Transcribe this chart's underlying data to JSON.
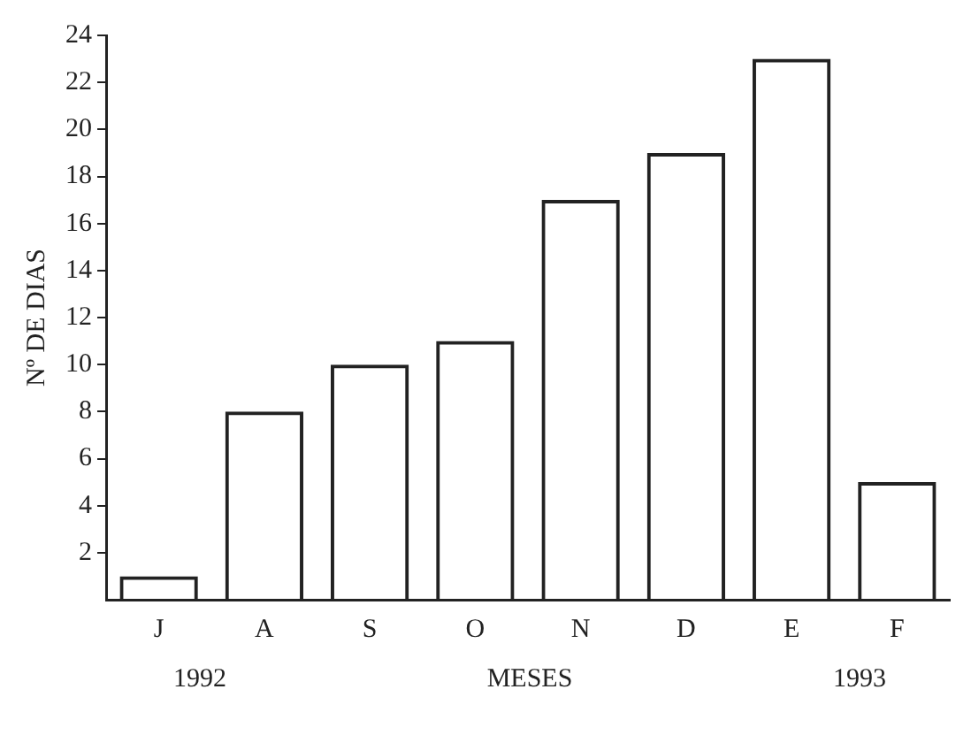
{
  "chart_data": {
    "type": "bar",
    "categories": [
      "J",
      "A",
      "S",
      "O",
      "N",
      "D",
      "E",
      "F"
    ],
    "values": [
      1,
      8,
      10,
      11,
      17,
      19,
      23,
      5
    ],
    "color": "#222222",
    "xlabel": "MESES",
    "ylabel": "Nº DE DIAS",
    "ylim": [
      0,
      24
    ],
    "yticks": [
      2,
      4,
      6,
      8,
      10,
      12,
      14,
      16,
      18,
      20,
      22,
      24
    ],
    "grid": false,
    "legend": false,
    "annotations": [
      "1992",
      "1993"
    ]
  }
}
